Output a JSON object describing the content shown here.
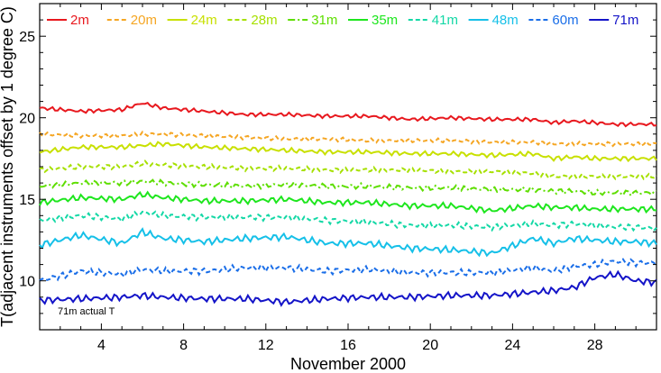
{
  "chart_data": {
    "type": "line",
    "title": "",
    "xlabel": "November 2000",
    "ylabel": "T(adjacent instruments offset by 1 degree C)",
    "xlim": [
      1,
      31
    ],
    "ylim": [
      7,
      27
    ],
    "x_ticks": [
      4,
      8,
      12,
      16,
      20,
      24,
      28
    ],
    "y_ticks": [
      10,
      15,
      20,
      25
    ],
    "grid": false,
    "legend_position": "top",
    "annotation": "71m actual T",
    "x": [
      1,
      3,
      5,
      6,
      7,
      9,
      11,
      13,
      15,
      17,
      19,
      21,
      23,
      25,
      26,
      27,
      28,
      29,
      30,
      31
    ],
    "series": [
      {
        "name": "2m",
        "color": "#e8181e",
        "dash": "solid",
        "values": [
          20.6,
          20.4,
          20.5,
          20.9,
          20.6,
          20.4,
          20.2,
          20.2,
          20.1,
          20.1,
          19.9,
          20.0,
          19.9,
          19.9,
          19.7,
          19.8,
          19.7,
          19.6,
          19.6,
          19.6
        ]
      },
      {
        "name": "20m",
        "color": "#f5a623",
        "dash": "dashed",
        "values": [
          19.0,
          18.9,
          18.9,
          19.0,
          19.0,
          18.9,
          18.8,
          18.7,
          18.7,
          18.6,
          18.6,
          18.6,
          18.5,
          18.5,
          18.4,
          18.4,
          18.4,
          18.4,
          18.4,
          18.4
        ]
      },
      {
        "name": "24m",
        "color": "#c8e000",
        "dash": "solid",
        "values": [
          17.9,
          18.2,
          18.2,
          18.3,
          18.4,
          18.2,
          18.1,
          18.0,
          17.9,
          17.9,
          17.8,
          17.8,
          17.7,
          17.8,
          17.5,
          17.6,
          17.5,
          17.5,
          17.5,
          17.5
        ]
      },
      {
        "name": "28m",
        "color": "#a6e000",
        "dash": "dashed",
        "values": [
          16.8,
          17.0,
          17.0,
          17.2,
          17.1,
          17.0,
          16.9,
          16.9,
          16.8,
          16.8,
          16.8,
          16.7,
          16.7,
          16.6,
          16.4,
          16.4,
          16.4,
          16.4,
          16.4,
          16.4
        ]
      },
      {
        "name": "31m",
        "color": "#5ede00",
        "dash": "dashdot",
        "values": [
          15.8,
          16.0,
          16.0,
          16.1,
          16.0,
          15.9,
          15.8,
          15.9,
          15.8,
          15.8,
          15.7,
          15.7,
          15.6,
          15.6,
          15.5,
          15.5,
          15.4,
          15.4,
          15.4,
          15.4
        ]
      },
      {
        "name": "35m",
        "color": "#1ee61e",
        "dash": "solid",
        "values": [
          14.8,
          15.1,
          15.0,
          15.3,
          15.1,
          14.9,
          14.9,
          15.0,
          14.8,
          14.8,
          14.6,
          14.6,
          14.3,
          14.6,
          14.5,
          14.5,
          14.4,
          14.4,
          14.4,
          14.4
        ]
      },
      {
        "name": "41m",
        "color": "#14d8a6",
        "dash": "dashed",
        "values": [
          13.7,
          14.0,
          13.8,
          14.2,
          14.0,
          13.9,
          13.9,
          13.9,
          13.7,
          13.6,
          13.4,
          13.4,
          13.3,
          13.5,
          13.4,
          13.5,
          13.4,
          13.3,
          13.3,
          13.2
        ]
      },
      {
        "name": "48m",
        "color": "#16c0e8",
        "dash": "solid",
        "values": [
          12.2,
          12.8,
          12.3,
          13.0,
          12.6,
          12.4,
          12.6,
          12.7,
          12.3,
          12.3,
          12.0,
          11.9,
          11.7,
          12.6,
          12.3,
          12.6,
          12.5,
          12.4,
          12.4,
          12.3
        ]
      },
      {
        "name": "60m",
        "color": "#1a6ee8",
        "dash": "dashed",
        "values": [
          10.0,
          10.6,
          10.4,
          10.7,
          10.6,
          10.6,
          10.8,
          10.8,
          10.6,
          10.7,
          10.5,
          10.5,
          10.5,
          10.8,
          10.6,
          10.9,
          11.0,
          11.2,
          11.1,
          11.1
        ]
      },
      {
        "name": "71m",
        "color": "#1414c8",
        "dash": "solid",
        "values": [
          8.8,
          8.9,
          9.0,
          9.1,
          9.0,
          8.9,
          8.9,
          8.7,
          8.9,
          9.0,
          9.0,
          9.1,
          9.1,
          9.3,
          9.4,
          9.6,
          10.2,
          10.4,
          10.0,
          9.9
        ]
      }
    ]
  }
}
